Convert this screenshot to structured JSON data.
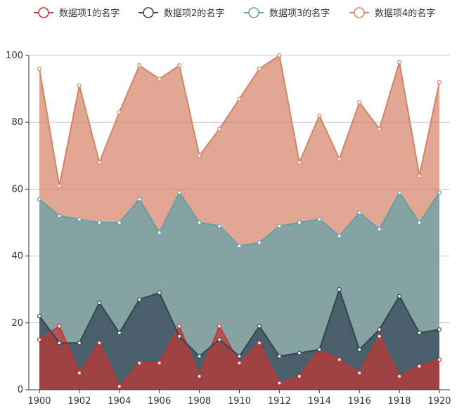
{
  "chart_data": {
    "type": "area",
    "x": [
      1900,
      1901,
      1902,
      1903,
      1904,
      1905,
      1906,
      1907,
      1908,
      1909,
      1910,
      1911,
      1912,
      1913,
      1914,
      1915,
      1916,
      1917,
      1918,
      1919,
      1920
    ],
    "x_ticks": [
      1900,
      1902,
      1904,
      1906,
      1908,
      1910,
      1912,
      1914,
      1916,
      1918,
      1920
    ],
    "y_ticks": [
      0,
      20,
      40,
      60,
      80,
      100
    ],
    "ylim": [
      0,
      100
    ],
    "xlim": [
      1900,
      1920
    ],
    "grid": "horizontal",
    "legend_position": "top",
    "series": [
      {
        "name": "数据项1的名字",
        "color": "#c23531",
        "values": [
          15,
          19,
          5,
          14,
          1,
          8,
          8,
          19,
          4,
          19,
          8,
          14,
          2,
          4,
          12,
          9,
          5,
          16,
          4,
          7,
          9
        ]
      },
      {
        "name": "数据项2的名字",
        "color": "#2f4554",
        "values": [
          22,
          14,
          14,
          26,
          17,
          27,
          29,
          16,
          10,
          15,
          10,
          19,
          10,
          11,
          12,
          30,
          12,
          18,
          28,
          17,
          18
        ]
      },
      {
        "name": "数据项3的名字",
        "color": "#61a0a8",
        "values": [
          57,
          52,
          51,
          50,
          50,
          57,
          47,
          59,
          50,
          49,
          43,
          44,
          49,
          50,
          51,
          46,
          53,
          48,
          59,
          50,
          59
        ]
      },
      {
        "name": "数据项4的名字",
        "color": "#d48265",
        "values": [
          96,
          61,
          91,
          68,
          83,
          97,
          93,
          97,
          70,
          78,
          87,
          96,
          100,
          68,
          82,
          69,
          86,
          78,
          98,
          64,
          92
        ]
      }
    ]
  }
}
